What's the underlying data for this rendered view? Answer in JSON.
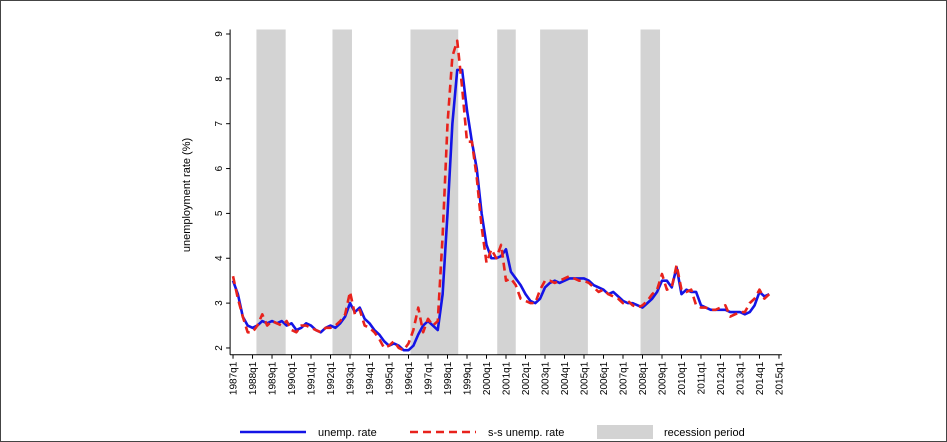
{
  "chart_data": {
    "type": "line",
    "y_label": "unemployment rate (%)",
    "x": [
      1987,
      1987.25,
      1987.5,
      1987.75,
      1988,
      1988.25,
      1988.5,
      1988.75,
      1989,
      1989.25,
      1989.5,
      1989.75,
      1990,
      1990.25,
      1990.5,
      1990.75,
      1991,
      1991.25,
      1991.5,
      1991.75,
      1992,
      1992.25,
      1992.5,
      1992.75,
      1993,
      1993.25,
      1993.5,
      1993.75,
      1994,
      1994.25,
      1994.5,
      1994.75,
      1995,
      1995.25,
      1995.5,
      1995.75,
      1996,
      1996.25,
      1996.5,
      1996.75,
      1997,
      1997.25,
      1997.5,
      1997.75,
      1998,
      1998.25,
      1998.5,
      1998.75,
      1999,
      1999.25,
      1999.5,
      1999.75,
      2000,
      2000.25,
      2000.5,
      2000.75,
      2001,
      2001.25,
      2001.5,
      2001.75,
      2002,
      2002.25,
      2002.5,
      2002.75,
      2003,
      2003.25,
      2003.5,
      2003.75,
      2004,
      2004.25,
      2004.5,
      2004.75,
      2005,
      2005.25,
      2005.5,
      2005.75,
      2006,
      2006.25,
      2006.5,
      2006.75,
      2007,
      2007.25,
      2007.5,
      2007.75,
      2008,
      2008.25,
      2008.5,
      2008.75,
      2009,
      2009.25,
      2009.5,
      2009.75,
      2010,
      2010.25,
      2010.5,
      2010.75,
      2011,
      2011.25,
      2011.5,
      2011.75,
      2012,
      2012.25,
      2012.5,
      2012.75,
      2013,
      2013.25,
      2013.5,
      2013.75,
      2014,
      2014.25,
      2014.5
    ],
    "series": [
      {
        "name": "unemp. rate",
        "color": "#1414e6",
        "dash": false,
        "values": [
          3.5,
          3.2,
          2.7,
          2.5,
          2.45,
          2.5,
          2.6,
          2.55,
          2.6,
          2.55,
          2.6,
          2.5,
          2.55,
          2.4,
          2.45,
          2.55,
          2.5,
          2.4,
          2.35,
          2.45,
          2.5,
          2.45,
          2.55,
          2.7,
          3.0,
          2.8,
          2.9,
          2.65,
          2.55,
          2.4,
          2.3,
          2.15,
          2.05,
          2.1,
          2.05,
          1.95,
          1.95,
          2.05,
          2.3,
          2.5,
          2.6,
          2.5,
          2.4,
          3.2,
          5.0,
          7.0,
          8.2,
          8.2,
          7.3,
          6.6,
          6.0,
          5.0,
          4.3,
          4.0,
          4.0,
          4.05,
          4.2,
          3.7,
          3.55,
          3.4,
          3.2,
          3.05,
          3.0,
          3.1,
          3.35,
          3.45,
          3.5,
          3.45,
          3.5,
          3.55,
          3.55,
          3.55,
          3.55,
          3.5,
          3.4,
          3.35,
          3.3,
          3.2,
          3.25,
          3.15,
          3.05,
          3.0,
          3.0,
          2.95,
          2.9,
          3.0,
          3.1,
          3.25,
          3.5,
          3.5,
          3.35,
          3.8,
          3.2,
          3.3,
          3.25,
          3.25,
          2.95,
          2.9,
          2.85,
          2.85,
          2.85,
          2.85,
          2.8,
          2.8,
          2.8,
          2.75,
          2.8,
          2.95,
          3.25,
          3.15,
          3.2
        ]
      },
      {
        "name": "s-s unemp. rate",
        "color": "#e8221c",
        "dash": true,
        "values": [
          3.6,
          3.1,
          2.7,
          2.35,
          2.35,
          2.5,
          2.75,
          2.5,
          2.6,
          2.55,
          2.5,
          2.6,
          2.4,
          2.35,
          2.5,
          2.5,
          2.45,
          2.4,
          2.35,
          2.45,
          2.45,
          2.5,
          2.6,
          2.75,
          3.25,
          2.75,
          2.85,
          2.5,
          2.45,
          2.35,
          2.2,
          2.0,
          2.05,
          2.15,
          2.0,
          1.95,
          2.1,
          2.4,
          2.9,
          2.35,
          2.65,
          2.5,
          2.6,
          4.5,
          7.0,
          8.5,
          8.85,
          7.8,
          6.6,
          6.6,
          5.8,
          4.7,
          3.9,
          4.2,
          4.0,
          4.3,
          3.5,
          3.55,
          3.4,
          3.1,
          3.05,
          3.0,
          3.0,
          3.3,
          3.5,
          3.5,
          3.45,
          3.5,
          3.55,
          3.6,
          3.55,
          3.5,
          3.5,
          3.45,
          3.35,
          3.25,
          3.3,
          3.2,
          3.15,
          3.1,
          3.0,
          3.05,
          2.95,
          2.9,
          2.95,
          3.05,
          3.2,
          3.3,
          3.65,
          3.3,
          3.35,
          3.85,
          3.3,
          3.25,
          3.3,
          2.95,
          2.9,
          2.9,
          2.85,
          2.85,
          2.9,
          2.95,
          2.7,
          2.75,
          2.8,
          2.8,
          3.0,
          3.1,
          3.3,
          3.1,
          3.2
        ]
      }
    ],
    "shaded": {
      "name": "recession period",
      "color": "#d3d3d3",
      "ranges": [
        [
          1988.2,
          1989.7
        ],
        [
          1992.1,
          1993.1
        ],
        [
          1996.1,
          1998.55
        ],
        [
          2000.55,
          2001.5
        ],
        [
          2002.75,
          2005.2
        ],
        [
          2007.9,
          2008.9
        ]
      ]
    },
    "xlim": [
      1986.85,
      2015.15
    ],
    "xticks": [
      {
        "value": 1987,
        "label": "1987q1"
      },
      {
        "value": 1988,
        "label": "1988q1"
      },
      {
        "value": 1989,
        "label": "1989q1"
      },
      {
        "value": 1990,
        "label": "1990q1"
      },
      {
        "value": 1991,
        "label": "1991q1"
      },
      {
        "value": 1992,
        "label": "1992q1"
      },
      {
        "value": 1993,
        "label": "1993q1"
      },
      {
        "value": 1994,
        "label": "1994q1"
      },
      {
        "value": 1995,
        "label": "1995q1"
      },
      {
        "value": 1996,
        "label": "1996q1"
      },
      {
        "value": 1997,
        "label": "1997q1"
      },
      {
        "value": 1998,
        "label": "1998q1"
      },
      {
        "value": 1999,
        "label": "1999q1"
      },
      {
        "value": 2000,
        "label": "2000q1"
      },
      {
        "value": 2001,
        "label": "2001q1"
      },
      {
        "value": 2002,
        "label": "2002q1"
      },
      {
        "value": 2003,
        "label": "2003q1"
      },
      {
        "value": 2004,
        "label": "2004q1"
      },
      {
        "value": 2005,
        "label": "2005q1"
      },
      {
        "value": 2006,
        "label": "2006q1"
      },
      {
        "value": 2007,
        "label": "2007q1"
      },
      {
        "value": 2008,
        "label": "2008q1"
      },
      {
        "value": 2009,
        "label": "2009q1"
      },
      {
        "value": 2010,
        "label": "2010q1"
      },
      {
        "value": 2011,
        "label": "2011q1"
      },
      {
        "value": 2012,
        "label": "2012q1"
      },
      {
        "value": 2013,
        "label": "2013q1"
      },
      {
        "value": 2014,
        "label": "2014q1"
      },
      {
        "value": 2015,
        "label": "2015q1"
      }
    ],
    "ylim": [
      1.85,
      9.1
    ],
    "yticks": [
      2,
      3,
      4,
      5,
      6,
      7,
      8,
      9
    ],
    "legend": "bottom"
  }
}
